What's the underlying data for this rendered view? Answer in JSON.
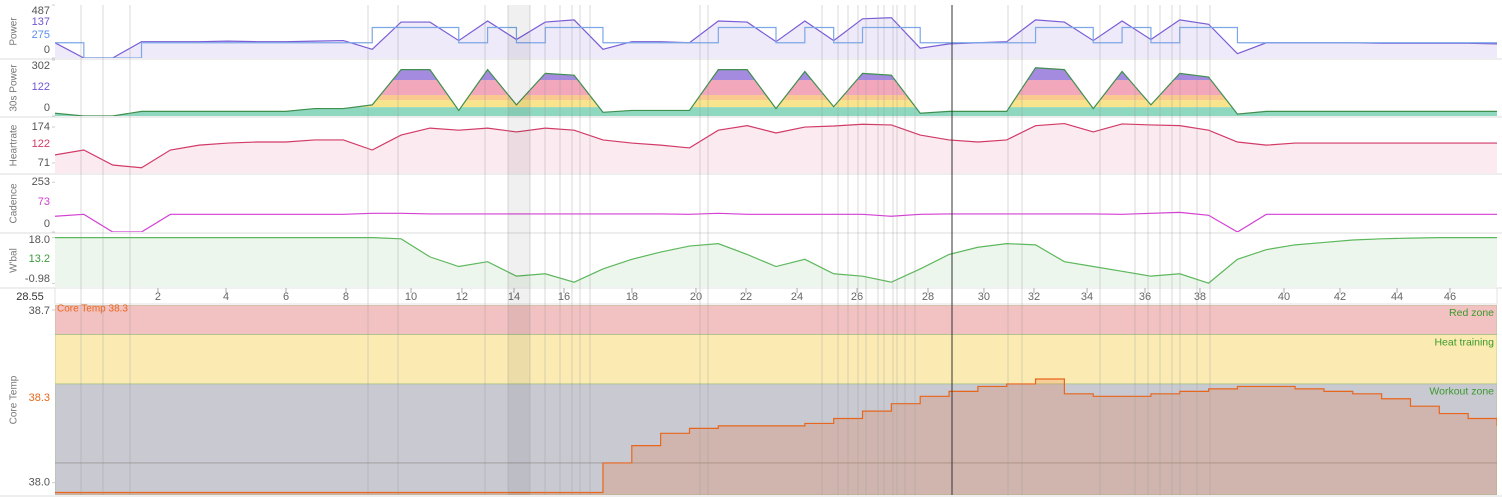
{
  "chart_data": {
    "type": "panels",
    "x_readout": "28.55",
    "xlim": [
      0,
      100
    ],
    "xticks": [
      {
        "value": 7.14,
        "label": "2"
      },
      {
        "value": 11.86,
        "label": "4"
      },
      {
        "value": 16.02,
        "label": "6"
      },
      {
        "value": 20.18,
        "label": "8"
      },
      {
        "value": 24.69,
        "label": "10"
      },
      {
        "value": 28.22,
        "label": "12"
      },
      {
        "value": 31.83,
        "label": "14"
      },
      {
        "value": 35.3,
        "label": "16"
      },
      {
        "value": 40.01,
        "label": "18"
      },
      {
        "value": 44.45,
        "label": "20"
      },
      {
        "value": 47.92,
        "label": "22"
      },
      {
        "value": 51.46,
        "label": "24"
      },
      {
        "value": 55.62,
        "label": "26"
      },
      {
        "value": 60.54,
        "label": "28"
      },
      {
        "value": 64.42,
        "label": "30"
      },
      {
        "value": 67.89,
        "label": "32"
      },
      {
        "value": 71.57,
        "label": "34"
      },
      {
        "value": 75.59,
        "label": "36"
      },
      {
        "value": 79.4,
        "label": "38"
      },
      {
        "value": 85.23,
        "label": "40"
      },
      {
        "value": 89.11,
        "label": "42"
      },
      {
        "value": 93.07,
        "label": "44"
      },
      {
        "value": 96.74,
        "label": "46"
      }
    ],
    "x": [
      0,
      2,
      4,
      6,
      8,
      10,
      12,
      14,
      16,
      18,
      20,
      22,
      24,
      26,
      28,
      30,
      32,
      34,
      36,
      38,
      40,
      42,
      44,
      46,
      48,
      50,
      52,
      54,
      56,
      58,
      60,
      62,
      64,
      66,
      68,
      70,
      72,
      74,
      76,
      78,
      80,
      82,
      84,
      86,
      88,
      90,
      92,
      94,
      96,
      98,
      100
    ],
    "panels": [
      {
        "type": "line",
        "ylabel": "Power",
        "ylim": [
          0,
          487
        ],
        "yticks": [
          487,
          0
        ],
        "stats": [
          {
            "value": 137,
            "color": "#7355d0"
          },
          {
            "value": 275,
            "color": "#5b8ee6"
          }
        ],
        "series": [
          {
            "color": "#7a5cd6",
            "fill": "#eeeaf9",
            "values": [
              140,
              0,
              0,
              150,
              150,
              150,
              155,
              150,
              150,
              155,
              160,
              80,
              330,
              330,
              160,
              340,
              170,
              330,
              350,
              80,
              150,
              150,
              140,
              340,
              330,
              150,
              340,
              160,
              360,
              370,
              90,
              130,
              140,
              150,
              350,
              330,
              160,
              340,
              170,
              350,
              310,
              40,
              140,
              140,
              140,
              140,
              135,
              135,
              135,
              135,
              130
            ]
          },
          {
            "color": "#7da7e8",
            "step": true,
            "values": [
              140,
              0,
              0,
              140,
              140,
              140,
              140,
              140,
              140,
              140,
              140,
              280,
              280,
              280,
              140,
              280,
              140,
              280,
              280,
              140,
              140,
              140,
              140,
              280,
              280,
              140,
              280,
              140,
              280,
              280,
              140,
              140,
              140,
              140,
              280,
              280,
              140,
              280,
              140,
              280,
              280,
              140,
              140,
              140,
              140,
              140,
              140,
              140,
              140,
              140,
              140
            ]
          }
        ]
      },
      {
        "type": "zone-area",
        "ylabel": "30s Power",
        "ylim": [
          0,
          302
        ],
        "yticks": [
          302,
          0
        ],
        "stats": [
          {
            "value": 122,
            "color": "#7355d0"
          }
        ],
        "zones": [
          {
            "max": 48,
            "color": "#8fd8c0"
          },
          {
            "max": 86,
            "color": "#f7e48c"
          },
          {
            "max": 113,
            "color": "#f9c98f"
          },
          {
            "max": 194,
            "color": "#f3a7bb"
          },
          {
            "max": 302,
            "color": "#a48be0"
          }
        ],
        "series": [
          {
            "color": "#3f8f4f",
            "values": [
              15,
              0,
              0,
              25,
              25,
              25,
              25,
              25,
              25,
              40,
              40,
              60,
              250,
              250,
              30,
              250,
              60,
              230,
              220,
              20,
              30,
              30,
              30,
              250,
              250,
              40,
              240,
              50,
              230,
              220,
              15,
              25,
              25,
              25,
              260,
              250,
              40,
              240,
              60,
              230,
              210,
              10,
              25,
              25,
              25,
              25,
              25,
              25,
              25,
              25,
              25
            ]
          }
        ]
      },
      {
        "type": "line",
        "ylabel": "Heartrate",
        "ylim": [
          42,
          200
        ],
        "yticks": [
          174,
          71
        ],
        "stats": [
          {
            "value": 122,
            "color": "#d23a67"
          }
        ],
        "series": [
          {
            "color": "#d23a67",
            "fill": "#fbeaf0",
            "values": [
              94,
              108,
              65,
              57,
              108,
              122,
              128,
              131,
              131,
              137,
              137,
              108,
              151,
              171,
              165,
              171,
              160,
              171,
              165,
              137,
              128,
              122,
              114,
              165,
              178,
              157,
              174,
              177,
              182,
              180,
              151,
              137,
              131,
              137,
              178,
              184,
              160,
              183,
              180,
              178,
              165,
              131,
              122,
              128,
              128,
              128,
              128,
              128,
              128,
              128,
              128
            ]
          }
        ]
      },
      {
        "type": "line",
        "ylabel": "Cadence",
        "ylim": [
          0,
          290
        ],
        "yticks": [
          253,
          0
        ],
        "stats": [
          {
            "value": 73,
            "color": "#d43fd4"
          }
        ],
        "series": [
          {
            "color": "#d43fd4",
            "values": [
              80,
              90,
              0,
              0,
              90,
              90,
              90,
              90,
              90,
              90,
              90,
              95,
              95,
              92,
              92,
              92,
              92,
              92,
              92,
              92,
              92,
              92,
              90,
              95,
              90,
              90,
              90,
              90,
              90,
              80,
              90,
              92,
              92,
              92,
              92,
              92,
              92,
              90,
              95,
              100,
              85,
              0,
              90,
              90,
              90,
              90,
              90,
              90,
              90,
              90,
              90
            ]
          }
        ]
      },
      {
        "type": "line",
        "ylabel": "W'bal",
        "ylim": [
          -2.5,
          19.5
        ],
        "yticks": [
          {
            "value": 18,
            "label": "18.0"
          },
          -0.98
        ],
        "stats": [
          {
            "value": 13.2,
            "color": "#3d9a3d"
          }
        ],
        "series": [
          {
            "color": "#5cb85c",
            "fill": "#edf6ed",
            "values": [
              18,
              18,
              18,
              18,
              18,
              18,
              18,
              18,
              18,
              18,
              18,
              18,
              17.5,
              10,
              6,
              8,
              2,
              3,
              -0.5,
              5,
              9,
              12,
              14.5,
              15.5,
              11,
              6,
              9,
              3,
              2,
              -0.5,
              5,
              11,
              14,
              15.5,
              15,
              8,
              6,
              4,
              2,
              3,
              -0.9,
              9,
              13,
              15,
              16,
              17,
              17.5,
              17.8,
              18,
              18,
              18
            ]
          }
        ]
      },
      {
        "type": "line",
        "ylabel": "Core Temp",
        "annotation": "Core Temp 38.3",
        "ylim": [
          37.95,
          38.72
        ],
        "yticks": [
          38.7,
          {
            "value": 38,
            "label": "38.0"
          }
        ],
        "stats": [
          {
            "value": 38.3,
            "color": "#e8661c"
          }
        ],
        "bands": [
          {
            "label": "Red zone",
            "min": 38.6,
            "max": 38.72,
            "color": "#f2c2c2"
          },
          {
            "label": "Heat training",
            "min": 38.4,
            "max": 38.6,
            "color": "#fbebb3"
          },
          {
            "label": "Workout zone",
            "min": 37.95,
            "max": 38.4,
            "color": "#c9c9d2"
          }
        ],
        "reference_line": 38.08,
        "series": [
          {
            "color": "#e8661c",
            "fill": "rgba(232,110,50,0.22)",
            "step": true,
            "values": [
              37.96,
              37.96,
              37.96,
              37.96,
              37.96,
              37.96,
              37.96,
              37.96,
              37.96,
              37.96,
              37.96,
              37.96,
              37.96,
              37.96,
              37.96,
              37.96,
              37.96,
              37.96,
              37.96,
              38.08,
              38.15,
              38.2,
              38.22,
              38.23,
              38.23,
              38.23,
              38.24,
              38.26,
              38.29,
              38.32,
              38.35,
              38.37,
              38.39,
              38.4,
              38.42,
              38.36,
              38.35,
              38.35,
              38.36,
              38.37,
              38.38,
              38.39,
              38.39,
              38.38,
              38.37,
              38.36,
              38.34,
              38.31,
              38.28,
              38.26,
              38.23
            ]
          }
        ]
      }
    ]
  }
}
